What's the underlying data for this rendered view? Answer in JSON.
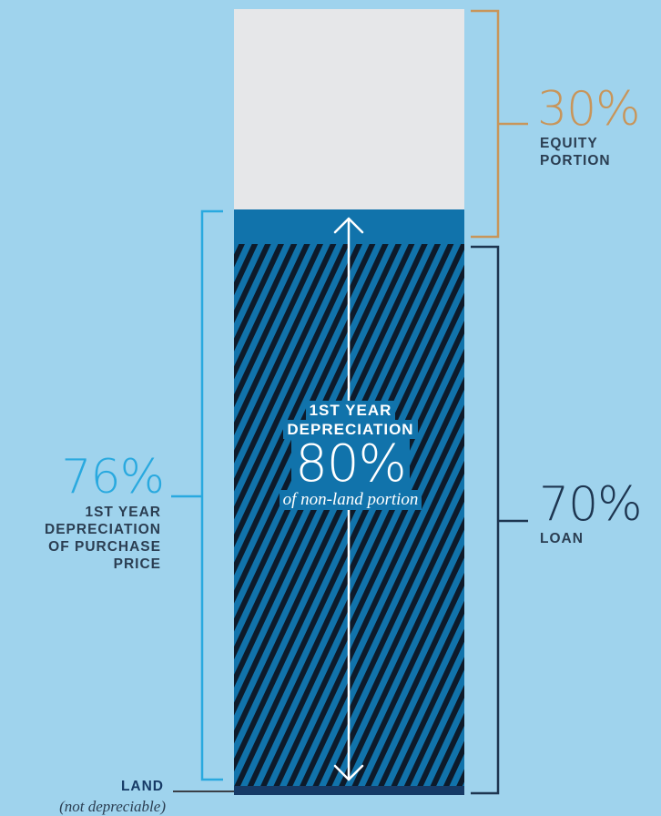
{
  "colors": {
    "background": "#9fd3ed",
    "equity_block": "#e6e7e9",
    "depreciation_block": "#1173ab",
    "land_block": "#163a66",
    "equity_bracket": "#c8955a",
    "loan_bracket": "#1d3550",
    "purchase_bracket": "#29a9df"
  },
  "equity": {
    "pct": "30%",
    "caption_line1": "EQUITY",
    "caption_line2": "PORTION",
    "share": 0.3
  },
  "loan": {
    "pct": "70%",
    "caption": "LOAN",
    "share": 0.7
  },
  "purchase": {
    "pct": "76%",
    "caption_line1": "1ST YEAR",
    "caption_line2": "DEPRECIATION",
    "caption_line3": "OF PURCHASE",
    "caption_line4": "PRICE"
  },
  "center": {
    "caption_line1": "1ST YEAR",
    "caption_line2": "DEPRECIATION",
    "pct": "80%",
    "subtext": "of non-land portion"
  },
  "land": {
    "label": "LAND",
    "sublabel": "(not depreciable)"
  }
}
